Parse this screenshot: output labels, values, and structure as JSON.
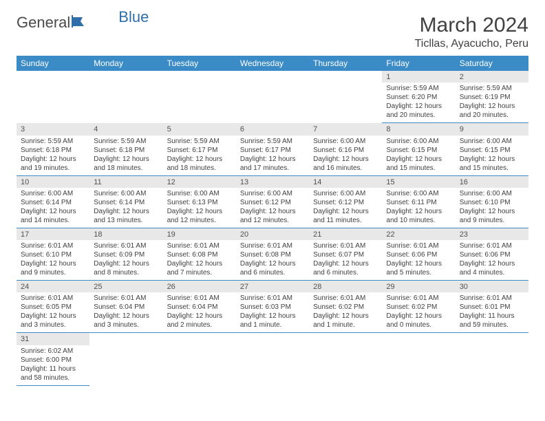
{
  "logo": {
    "text1": "General",
    "text2": "Blue"
  },
  "title": "March 2024",
  "location": "Ticllas, Ayacucho, Peru",
  "header_bg": "#3b8bc6",
  "daynum_bg": "#e8e8e8",
  "dayNames": [
    "Sunday",
    "Monday",
    "Tuesday",
    "Wednesday",
    "Thursday",
    "Friday",
    "Saturday"
  ],
  "weeks": [
    [
      null,
      null,
      null,
      null,
      null,
      {
        "n": "1",
        "sr": "5:59 AM",
        "ss": "6:20 PM",
        "dl": "12 hours and 20 minutes."
      },
      {
        "n": "2",
        "sr": "5:59 AM",
        "ss": "6:19 PM",
        "dl": "12 hours and 20 minutes."
      }
    ],
    [
      {
        "n": "3",
        "sr": "5:59 AM",
        "ss": "6:18 PM",
        "dl": "12 hours and 19 minutes."
      },
      {
        "n": "4",
        "sr": "5:59 AM",
        "ss": "6:18 PM",
        "dl": "12 hours and 18 minutes."
      },
      {
        "n": "5",
        "sr": "5:59 AM",
        "ss": "6:17 PM",
        "dl": "12 hours and 18 minutes."
      },
      {
        "n": "6",
        "sr": "5:59 AM",
        "ss": "6:17 PM",
        "dl": "12 hours and 17 minutes."
      },
      {
        "n": "7",
        "sr": "6:00 AM",
        "ss": "6:16 PM",
        "dl": "12 hours and 16 minutes."
      },
      {
        "n": "8",
        "sr": "6:00 AM",
        "ss": "6:15 PM",
        "dl": "12 hours and 15 minutes."
      },
      {
        "n": "9",
        "sr": "6:00 AM",
        "ss": "6:15 PM",
        "dl": "12 hours and 15 minutes."
      }
    ],
    [
      {
        "n": "10",
        "sr": "6:00 AM",
        "ss": "6:14 PM",
        "dl": "12 hours and 14 minutes."
      },
      {
        "n": "11",
        "sr": "6:00 AM",
        "ss": "6:14 PM",
        "dl": "12 hours and 13 minutes."
      },
      {
        "n": "12",
        "sr": "6:00 AM",
        "ss": "6:13 PM",
        "dl": "12 hours and 12 minutes."
      },
      {
        "n": "13",
        "sr": "6:00 AM",
        "ss": "6:12 PM",
        "dl": "12 hours and 12 minutes."
      },
      {
        "n": "14",
        "sr": "6:00 AM",
        "ss": "6:12 PM",
        "dl": "12 hours and 11 minutes."
      },
      {
        "n": "15",
        "sr": "6:00 AM",
        "ss": "6:11 PM",
        "dl": "12 hours and 10 minutes."
      },
      {
        "n": "16",
        "sr": "6:00 AM",
        "ss": "6:10 PM",
        "dl": "12 hours and 9 minutes."
      }
    ],
    [
      {
        "n": "17",
        "sr": "6:01 AM",
        "ss": "6:10 PM",
        "dl": "12 hours and 9 minutes."
      },
      {
        "n": "18",
        "sr": "6:01 AM",
        "ss": "6:09 PM",
        "dl": "12 hours and 8 minutes."
      },
      {
        "n": "19",
        "sr": "6:01 AM",
        "ss": "6:08 PM",
        "dl": "12 hours and 7 minutes."
      },
      {
        "n": "20",
        "sr": "6:01 AM",
        "ss": "6:08 PM",
        "dl": "12 hours and 6 minutes."
      },
      {
        "n": "21",
        "sr": "6:01 AM",
        "ss": "6:07 PM",
        "dl": "12 hours and 6 minutes."
      },
      {
        "n": "22",
        "sr": "6:01 AM",
        "ss": "6:06 PM",
        "dl": "12 hours and 5 minutes."
      },
      {
        "n": "23",
        "sr": "6:01 AM",
        "ss": "6:06 PM",
        "dl": "12 hours and 4 minutes."
      }
    ],
    [
      {
        "n": "24",
        "sr": "6:01 AM",
        "ss": "6:05 PM",
        "dl": "12 hours and 3 minutes."
      },
      {
        "n": "25",
        "sr": "6:01 AM",
        "ss": "6:04 PM",
        "dl": "12 hours and 3 minutes."
      },
      {
        "n": "26",
        "sr": "6:01 AM",
        "ss": "6:04 PM",
        "dl": "12 hours and 2 minutes."
      },
      {
        "n": "27",
        "sr": "6:01 AM",
        "ss": "6:03 PM",
        "dl": "12 hours and 1 minute."
      },
      {
        "n": "28",
        "sr": "6:01 AM",
        "ss": "6:02 PM",
        "dl": "12 hours and 1 minute."
      },
      {
        "n": "29",
        "sr": "6:01 AM",
        "ss": "6:02 PM",
        "dl": "12 hours and 0 minutes."
      },
      {
        "n": "30",
        "sr": "6:01 AM",
        "ss": "6:01 PM",
        "dl": "11 hours and 59 minutes."
      }
    ],
    [
      {
        "n": "31",
        "sr": "6:02 AM",
        "ss": "6:00 PM",
        "dl": "11 hours and 58 minutes."
      },
      null,
      null,
      null,
      null,
      null,
      null
    ]
  ],
  "labels": {
    "sunrise": "Sunrise: ",
    "sunset": "Sunset: ",
    "daylight": "Daylight: "
  }
}
